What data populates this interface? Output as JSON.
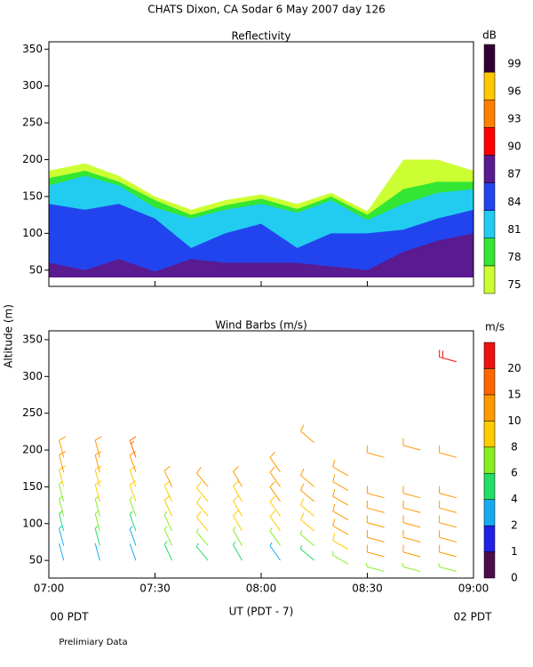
{
  "title": "CHATS Dixon, CA  Sodar   6 May 2007  day 126",
  "note": "Prelimiary Data",
  "chart_data": [
    {
      "type": "filled_contour",
      "title": "Reflectivity",
      "x": [
        7.0,
        7.17,
        7.33,
        7.5,
        7.67,
        7.83,
        8.0,
        8.17,
        8.33,
        8.5,
        8.67,
        8.83,
        9.0
      ],
      "base": 40,
      "series": [
        {
          "color": "#ccff33",
          "values": [
            185,
            195,
            178,
            150,
            132,
            145,
            153,
            140,
            155,
            130,
            200,
            200,
            185
          ]
        },
        {
          "color": "#33e633",
          "values": [
            175,
            185,
            170,
            145,
            125,
            138,
            147,
            133,
            150,
            125,
            160,
            170,
            170
          ]
        },
        {
          "color": "#22ccf0",
          "values": [
            165,
            178,
            165,
            135,
            120,
            132,
            140,
            128,
            145,
            118,
            140,
            155,
            160
          ]
        },
        {
          "color": "#2244ee",
          "values": [
            140,
            132,
            140,
            120,
            80,
            100,
            113,
            80,
            100,
            100,
            105,
            120,
            132
          ]
        },
        {
          "color": "#5a1a90",
          "values": [
            60,
            50,
            65,
            48,
            65,
            60,
            60,
            60,
            55,
            50,
            75,
            90,
            100
          ]
        }
      ],
      "colorbar": {
        "unit": "dB",
        "levels": [
          75,
          78,
          81,
          84,
          87,
          90,
          93,
          96,
          99
        ],
        "colors": [
          "#ccff33",
          "#33e633",
          "#22ccf0",
          "#2244ee",
          "#5a1a90",
          "#ff0000",
          "#ff7f00",
          "#ffc800",
          "#330033"
        ]
      },
      "xlim": [
        7,
        9
      ],
      "xticks": [
        7,
        7.5,
        8,
        8.5,
        9
      ],
      "ylim": [
        28,
        360
      ],
      "yticks": [
        50,
        100,
        150,
        200,
        250,
        300,
        350
      ]
    },
    {
      "type": "wind_barbs",
      "title": "Wind Barbs (m/s)",
      "xlabel": "UT  (PDT - 7)",
      "ylabel": "Altitude (m)",
      "x_label_left": "00 PDT",
      "x_label_right": "02 PDT",
      "profiles": [
        {
          "time": 7.07,
          "direction": 345,
          "heights": [
            50,
            70,
            90,
            110,
            130,
            150,
            170,
            190
          ],
          "speeds": [
            2,
            3,
            5,
            6,
            7,
            8,
            10,
            12
          ]
        },
        {
          "time": 7.24,
          "direction": 345,
          "heights": [
            50,
            70,
            90,
            110,
            130,
            150,
            170,
            190
          ],
          "speeds": [
            2,
            4,
            6,
            7,
            8,
            9,
            10,
            11
          ]
        },
        {
          "time": 7.41,
          "direction": 340,
          "heights": [
            50,
            70,
            90,
            110,
            130,
            150,
            170,
            190
          ],
          "speeds": [
            2,
            3,
            5,
            6,
            8,
            9,
            10,
            15
          ]
        },
        {
          "time": 7.58,
          "direction": 335,
          "heights": [
            50,
            70,
            90,
            110,
            130,
            150
          ],
          "speeds": [
            4,
            6,
            7,
            8,
            9,
            10
          ]
        },
        {
          "time": 7.75,
          "direction": 320,
          "heights": [
            50,
            70,
            90,
            110,
            130,
            150
          ],
          "speeds": [
            4,
            6,
            8,
            8,
            9,
            10
          ]
        },
        {
          "time": 7.91,
          "direction": 330,
          "heights": [
            50,
            70,
            90,
            110,
            130,
            150
          ],
          "speeds": [
            4,
            7,
            8,
            9,
            9,
            10
          ]
        },
        {
          "time": 8.09,
          "direction": 325,
          "heights": [
            50,
            70,
            90,
            110,
            130,
            150,
            170
          ],
          "speeds": [
            3,
            7,
            9,
            9,
            10,
            10,
            10
          ]
        },
        {
          "time": 8.25,
          "direction": 310,
          "heights": [
            50,
            70,
            90,
            110,
            130,
            150,
            210
          ],
          "speeds": [
            5,
            7,
            9,
            9,
            10,
            10,
            12
          ]
        },
        {
          "time": 8.41,
          "direction": 300,
          "heights": [
            45,
            65,
            85,
            105,
            125,
            145,
            165
          ],
          "speeds": [
            6,
            9,
            10,
            10,
            10,
            12,
            12
          ]
        },
        {
          "time": 8.58,
          "direction": 285,
          "heights": [
            35,
            55,
            75,
            95,
            115,
            135,
            190
          ],
          "speeds": [
            7,
            10,
            10,
            11,
            10,
            10,
            10
          ]
        },
        {
          "time": 8.75,
          "direction": 285,
          "heights": [
            35,
            55,
            75,
            95,
            115,
            135,
            200
          ],
          "speeds": [
            7,
            10,
            10,
            11,
            10,
            10,
            12
          ]
        },
        {
          "time": 8.92,
          "direction": 285,
          "heights": [
            35,
            55,
            75,
            95,
            115,
            135,
            190,
            320
          ],
          "speeds": [
            7,
            10,
            10,
            11,
            11,
            10,
            10,
            20
          ]
        }
      ],
      "colorbar": {
        "unit": "m/s",
        "levels": [
          0,
          1,
          2,
          4,
          6,
          8,
          10,
          15,
          20
        ],
        "colors": [
          "#4a0f4a",
          "#2020e6",
          "#18aaf0",
          "#22dd66",
          "#88ee22",
          "#ffcc00",
          "#ff9900",
          "#ff6600",
          "#ee1111"
        ]
      },
      "xlim": [
        7,
        9
      ],
      "xticks": [
        {
          "value": 7,
          "label": "07:00"
        },
        {
          "value": 7.5,
          "label": "07:30"
        },
        {
          "value": 8,
          "label": "08:00"
        },
        {
          "value": 8.5,
          "label": "08:30"
        },
        {
          "value": 9,
          "label": "09:00"
        }
      ],
      "ylim": [
        26,
        362
      ],
      "yticks": [
        50,
        100,
        150,
        200,
        250,
        300,
        350
      ]
    }
  ]
}
